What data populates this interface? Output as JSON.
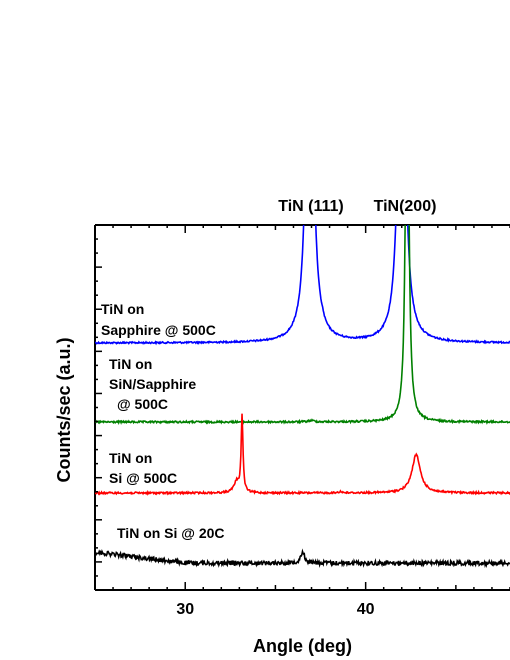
{
  "chart_data": {
    "type": "line",
    "xlabel": "Angle (deg)",
    "ylabel": "Counts/sec (a.u.)",
    "xlim": [
      25,
      48
    ],
    "xticks": [
      30,
      40
    ],
    "y_ticks_labeled": false,
    "grid": false,
    "legend": "none",
    "peak_labels": [
      {
        "text": "TiN (111)",
        "x": 36.8
      },
      {
        "text": "TiN(200)",
        "x": 42.1
      }
    ],
    "series": [
      {
        "name": "TiN on Sapphire @ 500C",
        "label_lines": [
          "TiN on",
          "Sapphire @ 500C"
        ],
        "color": "#0000ff",
        "peaks": [
          {
            "x": 36.9,
            "height": 1000,
            "width": 0.2
          },
          {
            "x": 37.6,
            "height": 5,
            "width": 0.08
          },
          {
            "x": 42.0,
            "height": 1000,
            "width": 0.2
          }
        ]
      },
      {
        "name": "TiN on SiN/Sapphire @ 500C",
        "label_lines": [
          "TiN on",
          "SiN/Sapphire",
          "@ 500C"
        ],
        "color": "#008000",
        "peaks": [
          {
            "x": 37.0,
            "height": 3,
            "width": 0.2
          },
          {
            "x": 42.3,
            "height": 1000,
            "width": 0.1
          }
        ]
      },
      {
        "name": "TiN on Si @ 500C",
        "label_lines": [
          "TiN on",
          "Si @ 500C"
        ],
        "color": "#ff0000",
        "peaks": [
          {
            "x": 32.85,
            "height": 24,
            "width": 0.18
          },
          {
            "x": 33.15,
            "height": 170,
            "width": 0.06
          },
          {
            "x": 38.6,
            "height": 3,
            "width": 0.12
          },
          {
            "x": 42.8,
            "height": 85,
            "width": 0.28
          }
        ]
      },
      {
        "name": "TiN on Si @ 20C",
        "label_lines": [
          "TiN on Si @ 20C"
        ],
        "color": "#000000",
        "peaks": [
          {
            "x": 36.5,
            "height": 24,
            "width": 0.14
          }
        ]
      }
    ]
  }
}
